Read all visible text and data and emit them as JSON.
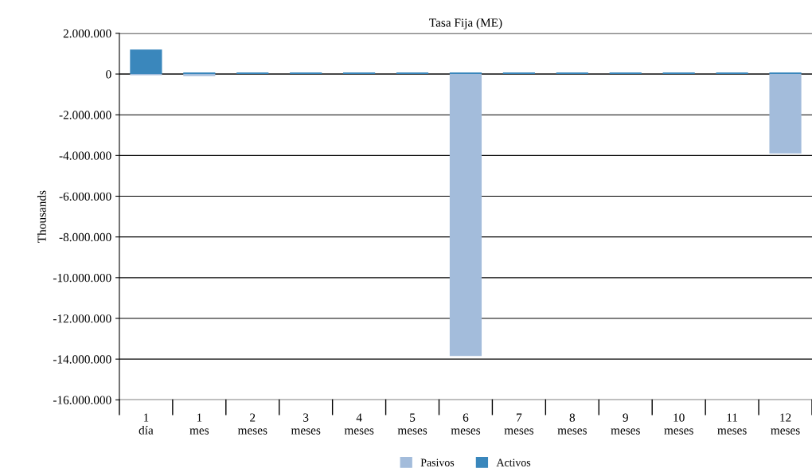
{
  "chart_data": {
    "type": "bar",
    "title": "Tasa Fija (ME)",
    "ylabel": "Thousands",
    "categories": [
      "1\ndía",
      "1\nmes",
      "2\nmeses",
      "3\nmeses",
      "4\nmeses",
      "5\nmeses",
      "6\nmeses",
      "7\nmeses",
      "8\nmeses",
      "9\nmeses",
      "10\nmeses",
      "11\nmeses",
      "12\nmeses"
    ],
    "series": [
      {
        "name": "Pasivos",
        "color": "#a3bcdb",
        "values": [
          -60000,
          -100000,
          0,
          0,
          0,
          0,
          -13850000,
          0,
          0,
          0,
          0,
          0,
          -3900000
        ]
      },
      {
        "name": "Activos",
        "color": "#3a87bc",
        "values": [
          1200000,
          80000,
          80000,
          80000,
          80000,
          80000,
          80000,
          80000,
          80000,
          80000,
          80000,
          80000,
          80000
        ]
      }
    ],
    "ylim": [
      -16000000,
      2000000
    ],
    "yticks": [
      {
        "value": 2000000,
        "label": "2.000.000"
      },
      {
        "value": 0,
        "label": "0"
      },
      {
        "value": -2000000,
        "label": "-2.000.000"
      },
      {
        "value": -4000000,
        "label": "-4.000.000"
      },
      {
        "value": -6000000,
        "label": "-6.000.000"
      },
      {
        "value": -8000000,
        "label": "-8.000.000"
      },
      {
        "value": -10000000,
        "label": "-10.000.000"
      },
      {
        "value": -12000000,
        "label": "-12.000.000"
      },
      {
        "value": -14000000,
        "label": "-14.000.000"
      },
      {
        "value": -16000000,
        "label": "-16.000.000"
      }
    ],
    "grid": "y",
    "legend": "bottom"
  }
}
